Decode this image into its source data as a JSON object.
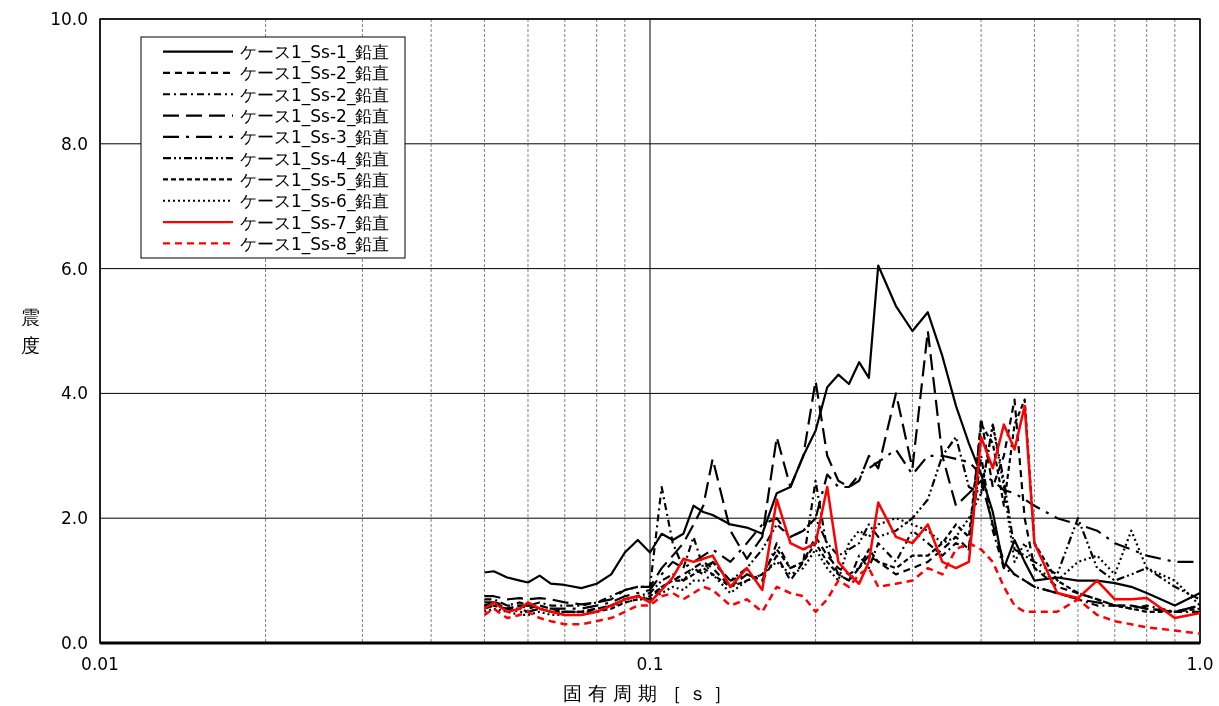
{
  "chart_data": {
    "type": "line",
    "xlabel": "固有周期［ｓ］",
    "ylabel": "震度",
    "log": "x",
    "grid": true,
    "legend": "top left",
    "xlim": [
      0.01,
      1
    ],
    "xticks": [
      0.01,
      0.1,
      {
        "value": 1,
        "label": "1.0"
      }
    ],
    "ylim": [
      0,
      10
    ],
    "yticks": [
      {
        "value": 0,
        "label": "0.0"
      },
      {
        "value": 2,
        "label": "2.0"
      },
      {
        "value": 4,
        "label": "4.0"
      },
      {
        "value": 6,
        "label": "6.0"
      },
      {
        "value": 8,
        "label": "8.0"
      },
      {
        "value": 10,
        "label": "10.0"
      }
    ],
    "x": [
      0.05,
      0.052,
      0.055,
      0.058,
      0.06,
      0.063,
      0.066,
      0.07,
      0.075,
      0.08,
      0.085,
      0.09,
      0.095,
      0.1,
      0.105,
      0.11,
      0.115,
      0.12,
      0.125,
      0.13,
      0.14,
      0.15,
      0.16,
      0.17,
      0.18,
      0.19,
      0.2,
      0.21,
      0.22,
      0.23,
      0.24,
      0.25,
      0.26,
      0.28,
      0.3,
      0.32,
      0.34,
      0.36,
      0.38,
      0.4,
      0.42,
      0.44,
      0.46,
      0.48,
      0.5,
      0.55,
      0.6,
      0.65,
      0.7,
      0.75,
      0.8,
      0.9,
      1.0
    ],
    "series": [
      {
        "name": "ケース1_Ss-1_鉛直",
        "color": "#000000",
        "line_style": "solid",
        "values": [
          1.13,
          1.15,
          1.05,
          1.0,
          0.97,
          1.08,
          0.95,
          0.93,
          0.88,
          0.95,
          1.1,
          1.45,
          1.65,
          1.45,
          1.75,
          1.65,
          1.75,
          2.2,
          2.1,
          2.05,
          1.9,
          1.85,
          1.75,
          2.4,
          2.5,
          3.0,
          3.4,
          4.1,
          4.3,
          4.15,
          4.5,
          4.25,
          6.05,
          5.4,
          5.0,
          5.3,
          4.6,
          3.8,
          3.2,
          2.7,
          2.1,
          1.2,
          1.65,
          1.3,
          1.0,
          1.05,
          1.0,
          1.0,
          0.96,
          0.9,
          0.8,
          0.6,
          0.8
        ]
      },
      {
        "name": "ケース1_Ss-2_鉛直",
        "color": "#000000",
        "line_style": "dashed",
        "values": [
          0.6,
          0.65,
          0.55,
          0.6,
          0.55,
          0.6,
          0.55,
          0.5,
          0.5,
          0.55,
          0.6,
          0.7,
          0.75,
          0.7,
          0.9,
          1.0,
          1.1,
          1.2,
          1.3,
          1.2,
          0.9,
          1.1,
          1.0,
          1.4,
          1.0,
          1.3,
          1.7,
          1.4,
          1.2,
          1.1,
          1.2,
          1.4,
          1.3,
          1.1,
          1.2,
          1.3,
          1.5,
          1.7,
          1.5,
          3.6,
          2.5,
          3.0,
          3.9,
          2.0,
          1.2,
          0.9,
          0.8,
          0.7,
          0.6,
          0.6,
          0.55,
          0.5,
          0.6
        ]
      },
      {
        "name": "ケース1_Ss-2_鉛直",
        "color": "#000000",
        "line_style": "dashdot",
        "values": [
          0.7,
          0.7,
          0.6,
          0.65,
          0.6,
          0.65,
          0.6,
          0.6,
          0.6,
          0.65,
          0.75,
          0.85,
          0.9,
          0.9,
          2.5,
          1.6,
          1.2,
          1.7,
          1.2,
          1.3,
          1.0,
          1.1,
          1.0,
          1.6,
          1.2,
          1.3,
          2.6,
          1.5,
          1.1,
          1.0,
          1.4,
          1.2,
          1.6,
          1.3,
          1.8,
          1.6,
          1.4,
          1.6,
          1.5,
          3.0,
          1.8,
          1.2,
          1.1,
          1.0,
          0.9,
          0.8,
          0.7,
          0.6,
          0.6,
          0.55,
          0.6,
          0.5,
          0.5
        ]
      },
      {
        "name": "ケース1_Ss-2_鉛直",
        "color": "#000000",
        "line_style": "longdash",
        "values": [
          0.75,
          0.75,
          0.7,
          0.72,
          0.7,
          0.72,
          0.7,
          0.65,
          0.62,
          0.65,
          0.7,
          0.85,
          0.9,
          0.9,
          1.2,
          1.4,
          1.6,
          1.9,
          2.2,
          2.95,
          1.8,
          1.35,
          1.7,
          3.3,
          2.5,
          3.0,
          4.2,
          3.0,
          2.6,
          2.5,
          2.6,
          3.0,
          2.8,
          4.0,
          2.8,
          5.0,
          3.0,
          2.2,
          2.4,
          2.6,
          1.9,
          1.3,
          1.1,
          1.0,
          0.9,
          0.8,
          0.7,
          0.65,
          0.6,
          0.6,
          0.55,
          0.5,
          0.6
        ]
      },
      {
        "name": "ケース1_Ss-3_鉛直",
        "color": "#000000",
        "line_style": "longdashdot",
        "values": [
          0.65,
          0.65,
          0.6,
          0.6,
          0.6,
          0.6,
          0.55,
          0.55,
          0.55,
          0.6,
          0.65,
          0.75,
          0.8,
          0.85,
          1.1,
          1.3,
          1.2,
          1.3,
          1.4,
          1.5,
          1.3,
          1.6,
          1.9,
          2.0,
          1.7,
          1.8,
          2.0,
          2.7,
          2.5,
          2.5,
          2.7,
          2.8,
          2.9,
          3.1,
          2.7,
          3.0,
          3.0,
          2.95,
          2.9,
          2.7,
          2.6,
          2.45,
          2.4,
          2.3,
          2.2,
          2.0,
          1.9,
          1.8,
          1.6,
          1.5,
          1.4,
          1.3,
          1.3
        ]
      },
      {
        "name": "ケース1_Ss-4_鉛直",
        "color": "#000000",
        "line_style": "dashdotdot",
        "values": [
          0.55,
          0.6,
          0.55,
          0.5,
          0.5,
          0.55,
          0.5,
          0.5,
          0.5,
          0.55,
          0.6,
          0.7,
          0.75,
          0.8,
          1.0,
          1.1,
          1.0,
          1.2,
          1.1,
          1.3,
          1.0,
          1.2,
          1.5,
          1.9,
          1.7,
          1.8,
          2.0,
          1.6,
          1.4,
          1.5,
          1.6,
          1.9,
          1.7,
          1.8,
          2.0,
          2.3,
          3.0,
          3.3,
          2.5,
          2.4,
          3.5,
          2.6,
          1.5,
          1.4,
          1.3,
          1.1,
          2.0,
          1.2,
          1.0,
          1.1,
          1.2,
          0.9,
          0.7
        ]
      },
      {
        "name": "ケース1_Ss-5_鉛直",
        "color": "#000000",
        "line_style": "shortdash",
        "values": [
          0.6,
          0.6,
          0.55,
          0.55,
          0.5,
          0.55,
          0.5,
          0.5,
          0.5,
          0.5,
          0.55,
          0.65,
          0.7,
          0.75,
          0.9,
          1.0,
          1.0,
          1.1,
          1.2,
          1.1,
          0.9,
          1.0,
          1.1,
          1.5,
          1.2,
          1.3,
          1.6,
          1.3,
          1.1,
          1.0,
          1.2,
          1.5,
          1.3,
          1.2,
          1.4,
          1.4,
          1.6,
          1.9,
          1.7,
          3.5,
          3.2,
          2.2,
          3.5,
          3.9,
          1.6,
          1.0,
          0.8,
          0.7,
          0.6,
          0.55,
          0.5,
          0.5,
          0.55
        ]
      },
      {
        "name": "ケース1_Ss-6_鉛直",
        "color": "#000000",
        "line_style": "dotted",
        "values": [
          0.5,
          0.55,
          0.5,
          0.45,
          0.45,
          0.5,
          0.45,
          0.45,
          0.45,
          0.5,
          0.6,
          0.65,
          0.7,
          0.7,
          0.8,
          0.9,
          0.85,
          1.0,
          1.0,
          1.1,
          0.8,
          1.0,
          1.1,
          1.3,
          1.1,
          1.2,
          1.5,
          1.2,
          1.0,
          1.6,
          1.8,
          1.7,
          1.9,
          2.0,
          1.9,
          1.8,
          1.6,
          1.7,
          2.0,
          2.4,
          3.5,
          2.5,
          1.3,
          1.6,
          1.2,
          1.0,
          1.3,
          1.4,
          1.1,
          1.8,
          1.2,
          1.0,
          0.6
        ]
      },
      {
        "name": "ケース1_Ss-7_鉛直",
        "color": "#ff0000",
        "line_style": "solid",
        "values": [
          0.55,
          0.65,
          0.5,
          0.55,
          0.65,
          0.55,
          0.5,
          0.45,
          0.45,
          0.5,
          0.6,
          0.7,
          0.75,
          0.65,
          0.85,
          1.05,
          1.35,
          1.3,
          1.35,
          1.4,
          0.9,
          1.2,
          0.85,
          2.3,
          1.6,
          1.5,
          1.6,
          2.5,
          1.3,
          1.1,
          0.95,
          1.3,
          2.25,
          1.7,
          1.6,
          1.9,
          1.3,
          1.2,
          1.3,
          3.3,
          2.8,
          3.5,
          3.1,
          3.8,
          1.6,
          0.8,
          0.72,
          1.0,
          0.7,
          0.7,
          0.72,
          0.4,
          0.48
        ]
      },
      {
        "name": "ケース1_Ss-8_鉛直",
        "color": "#ff0000",
        "line_style": "dashed",
        "values": [
          0.45,
          0.55,
          0.4,
          0.45,
          0.5,
          0.4,
          0.35,
          0.3,
          0.3,
          0.35,
          0.4,
          0.5,
          0.6,
          0.6,
          0.75,
          0.8,
          0.7,
          0.8,
          0.9,
          0.85,
          0.6,
          0.7,
          0.5,
          0.9,
          0.8,
          0.75,
          0.5,
          0.7,
          1.0,
          0.9,
          1.1,
          1.2,
          0.9,
          0.95,
          1.0,
          1.2,
          1.1,
          1.5,
          1.6,
          1.5,
          1.3,
          0.9,
          0.6,
          0.5,
          0.5,
          0.5,
          0.7,
          0.45,
          0.35,
          0.3,
          0.25,
          0.2,
          0.15
        ]
      }
    ]
  }
}
